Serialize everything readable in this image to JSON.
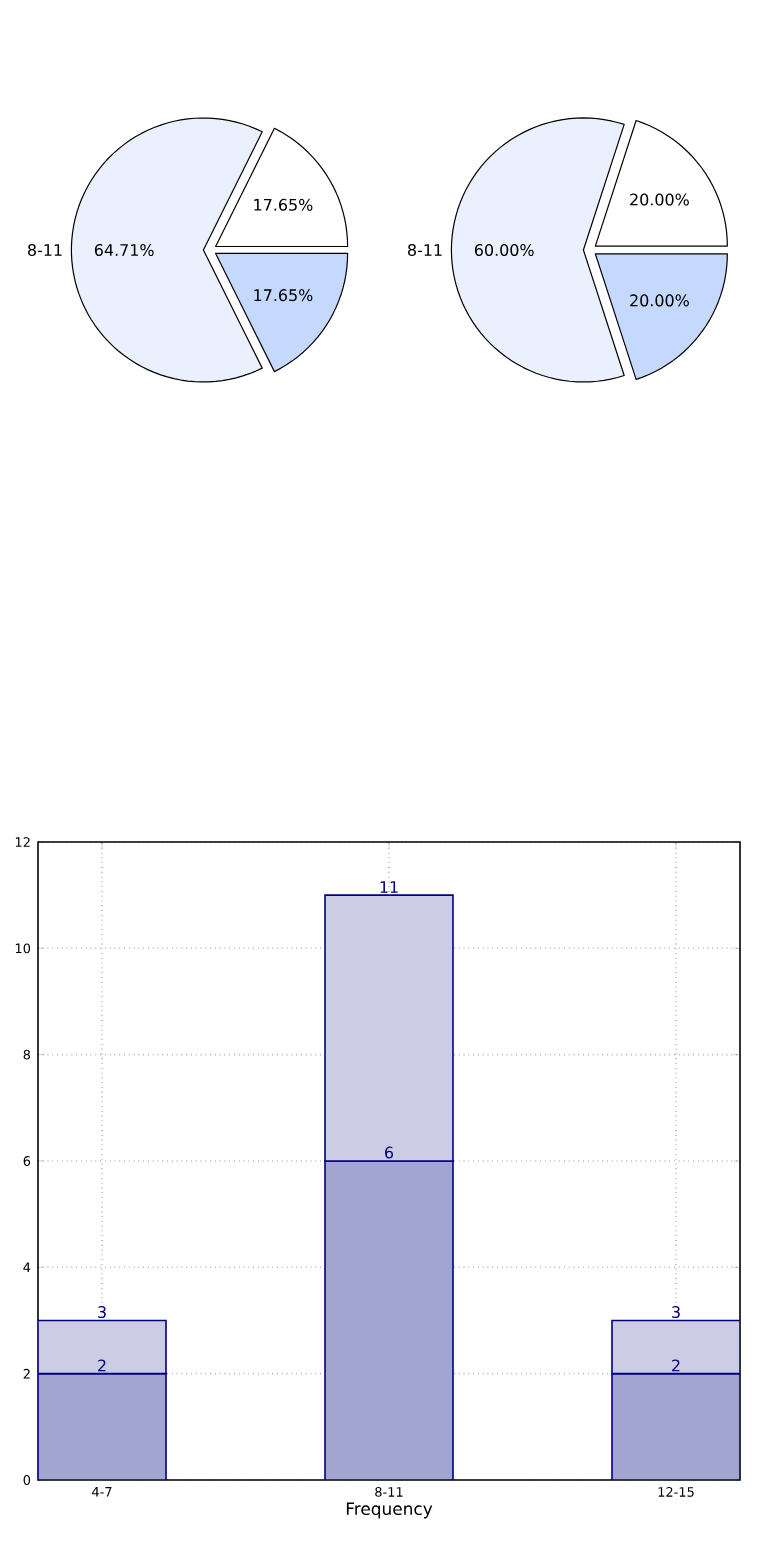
{
  "chart_data": [
    {
      "type": "pie",
      "categories": [
        null,
        "8-11",
        null
      ],
      "values": [
        17.65,
        64.71,
        17.65
      ],
      "colors": [
        "#ffffff",
        "#eaf0fe",
        "#c5d9fe"
      ],
      "value_labels": [
        "17.65%",
        "64.71%",
        "17.65%"
      ]
    },
    {
      "type": "pie",
      "categories": [
        null,
        "8-11",
        null
      ],
      "values": [
        20,
        60,
        20
      ],
      "colors": [
        "#ffffff",
        "#eaf0fe",
        "#c5d9fe"
      ],
      "value_labels": [
        "20.00%",
        "60.00%",
        "20.00%"
      ]
    },
    {
      "type": "bar",
      "xlabel": "Frequency",
      "categories": [
        "4-7",
        "8-11",
        "12-15"
      ],
      "stacked": true,
      "series": [
        {
          "color": "#a3a5d1",
          "values": [
            2,
            6,
            2
          ],
          "value_labels": [
            "2",
            "6",
            "2"
          ]
        },
        {
          "color": "#cccce4",
          "values": [
            1,
            5,
            1
          ]
        }
      ],
      "totals": [
        "3",
        "11",
        "3"
      ],
      "ylim": [
        0,
        12
      ],
      "yticks": [
        0,
        2,
        4,
        6,
        8,
        10,
        12
      ],
      "grid": true
    }
  ]
}
